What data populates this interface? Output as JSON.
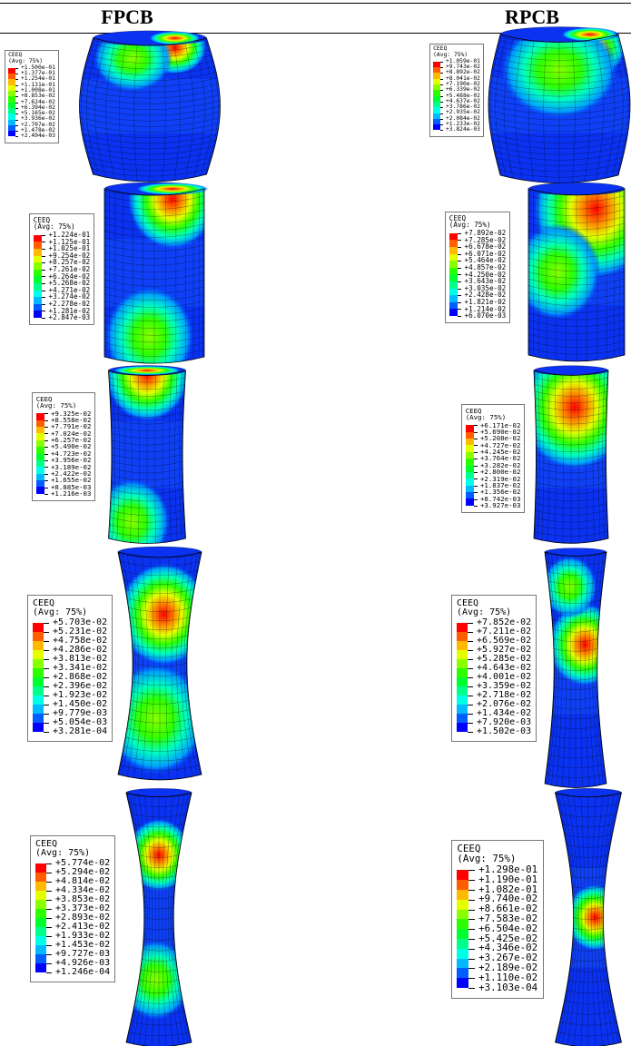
{
  "columns": [
    {
      "header": "FPCB",
      "legends": [
        {
          "title": "CEEQ",
          "subtitle": "(Avg: 75%)",
          "values": [
            "+1.500e-01",
            "+1.377e-01",
            "+1.254e-01",
            "+1.131e-01",
            "+1.008e-01",
            "+8.853e-02",
            "+7.624e-02",
            "+6.394e-02",
            "+5.165e-02",
            "+3.936e-02",
            "+2.707e-02",
            "+1.478e-02",
            "+2.494e-03"
          ]
        },
        {
          "title": "CEEQ",
          "subtitle": "(Avg: 75%)",
          "values": [
            "+1.224e-01",
            "+1.125e-01",
            "+1.025e-01",
            "+9.254e-02",
            "+8.257e-02",
            "+7.261e-02",
            "+6.264e-02",
            "+5.268e-02",
            "+4.271e-02",
            "+3.274e-02",
            "+2.278e-02",
            "+1.281e-02",
            "+2.847e-03"
          ]
        },
        {
          "title": "CEEQ",
          "subtitle": "(Avg: 75%)",
          "values": [
            "+9.325e-02",
            "+8.558e-02",
            "+7.791e-02",
            "+7.024e-02",
            "+6.257e-02",
            "+5.490e-02",
            "+4.723e-02",
            "+3.956e-02",
            "+3.189e-02",
            "+2.422e-02",
            "+1.655e-02",
            "+8.885e-03",
            "+1.216e-03"
          ]
        },
        {
          "title": "CEEQ",
          "subtitle": "(Avg: 75%)",
          "values": [
            "+5.703e-02",
            "+5.231e-02",
            "+4.758e-02",
            "+4.286e-02",
            "+3.813e-02",
            "+3.341e-02",
            "+2.868e-02",
            "+2.396e-02",
            "+1.923e-02",
            "+1.450e-02",
            "+9.779e-03",
            "+5.054e-03",
            "+3.281e-04"
          ]
        },
        {
          "title": "CEEQ",
          "subtitle": "(Avg: 75%)",
          "values": [
            "+5.774e-02",
            "+5.294e-02",
            "+4.814e-02",
            "+4.334e-02",
            "+3.853e-02",
            "+3.373e-02",
            "+2.893e-02",
            "+2.413e-02",
            "+1.933e-02",
            "+1.453e-02",
            "+9.727e-03",
            "+4.926e-03",
            "+1.246e-04"
          ]
        }
      ]
    },
    {
      "header": "RPCB",
      "legends": [
        {
          "title": "CEEQ",
          "subtitle": "(Avg: 75%)",
          "values": [
            "+1.059e-01",
            "+9.743e-02",
            "+8.892e-02",
            "+8.041e-02",
            "+7.190e-02",
            "+6.339e-02",
            "+5.488e-02",
            "+4.637e-02",
            "+3.786e-02",
            "+2.935e-02",
            "+2.084e-02",
            "+1.233e-02",
            "+3.824e-03"
          ]
        },
        {
          "title": "CEEQ",
          "subtitle": "(Avg: 75%)",
          "values": [
            "+7.892e-02",
            "+7.285e-02",
            "+6.678e-02",
            "+6.071e-02",
            "+5.464e-02",
            "+4.857e-02",
            "+4.250e-02",
            "+3.643e-02",
            "+3.035e-02",
            "+2.428e-02",
            "+1.821e-02",
            "+1.214e-02",
            "+6.070e-03"
          ]
        },
        {
          "title": "CEEQ",
          "subtitle": "(Avg: 75%)",
          "values": [
            "+6.171e-02",
            "+5.690e-02",
            "+5.208e-02",
            "+4.727e-02",
            "+4.245e-02",
            "+3.764e-02",
            "+3.282e-02",
            "+2.800e-02",
            "+2.319e-02",
            "+1.837e-02",
            "+1.356e-02",
            "+8.742e-03",
            "+3.927e-03"
          ]
        },
        {
          "title": "CEEQ",
          "subtitle": "(Avg: 75%)",
          "values": [
            "+7.852e-02",
            "+7.211e-02",
            "+6.569e-02",
            "+5.927e-02",
            "+5.285e-02",
            "+4.643e-02",
            "+4.001e-02",
            "+3.359e-02",
            "+2.718e-02",
            "+2.076e-02",
            "+1.434e-02",
            "+7.920e-03",
            "+1.502e-03"
          ]
        },
        {
          "title": "CEEQ",
          "subtitle": "(Avg: 75%)",
          "values": [
            "+1.298e-01",
            "+1.190e-01",
            "+1.082e-01",
            "+9.740e-02",
            "+8.661e-02",
            "+7.583e-02",
            "+6.504e-02",
            "+5.425e-02",
            "+4.346e-02",
            "+3.267e-02",
            "+2.189e-02",
            "+1.110e-02",
            "+3.103e-04"
          ]
        }
      ]
    }
  ]
}
